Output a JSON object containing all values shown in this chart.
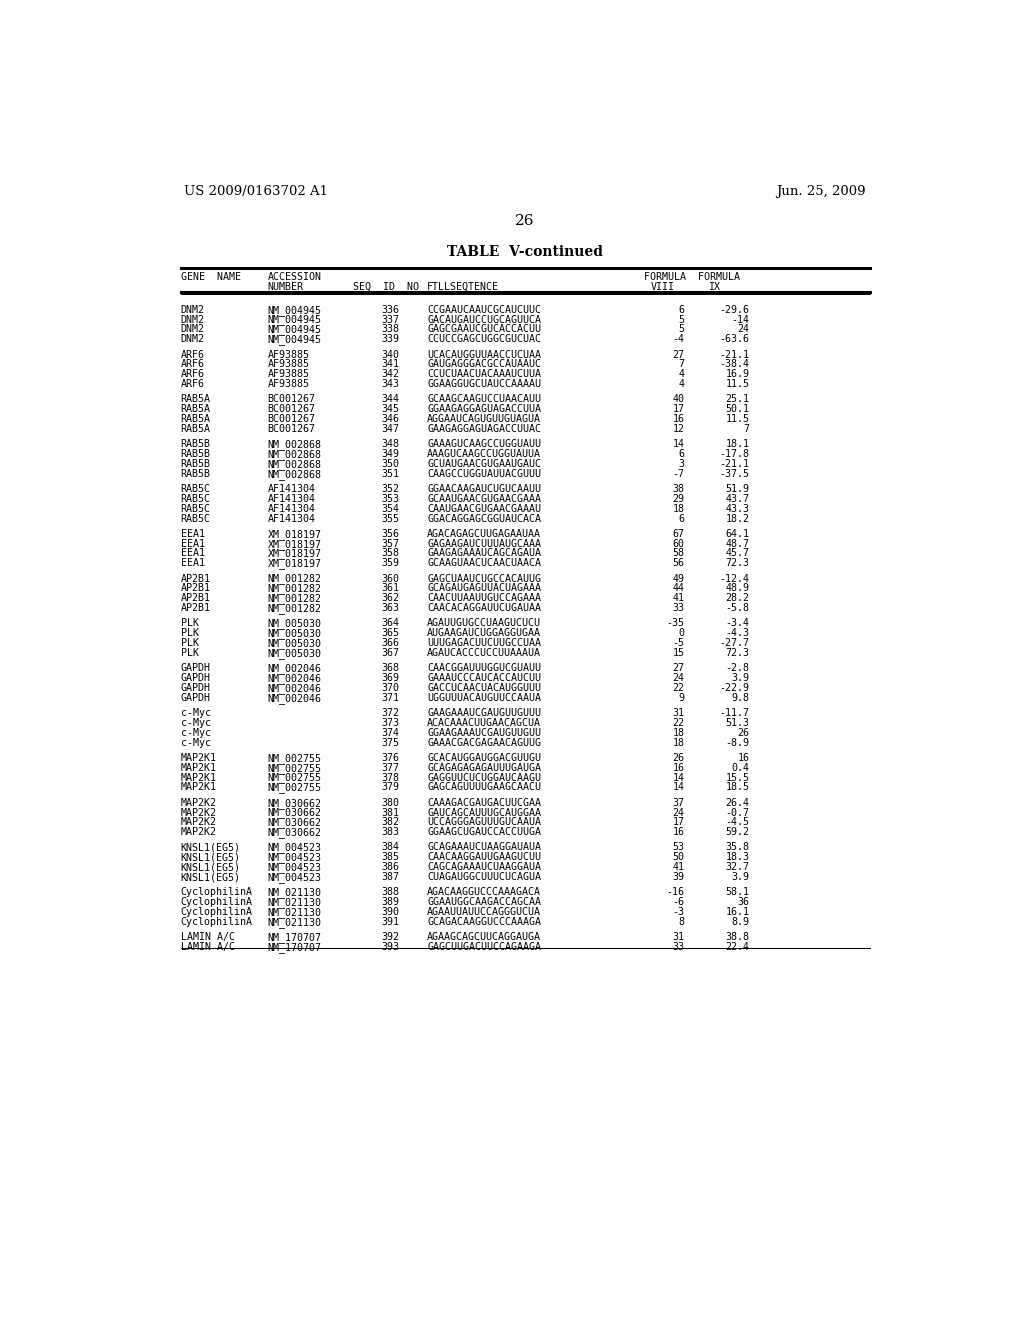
{
  "title_left": "US 2009/0163702 A1",
  "title_right": "Jun. 25, 2009",
  "page_number": "26",
  "table_title": "TABLE  V-continued",
  "rows": [
    [
      "DNM2",
      "NM_004945",
      "336",
      "CCGAAUCAAUCGCAUCUUC",
      "6",
      "-29.6"
    ],
    [
      "DNM2",
      "NM_004945",
      "337",
      "GACAUGAUCCUGCAGUUCA",
      "5",
      "-14"
    ],
    [
      "DNM2",
      "NM_004945",
      "338",
      "GAGCGAAUCGUCACCACUU",
      "5",
      "24"
    ],
    [
      "DNM2",
      "NM_004945",
      "339",
      "CCUCCGAGCUGGCGUCUAC",
      "-4",
      "-63.6"
    ],
    [
      "",
      "",
      "",
      "",
      "",
      ""
    ],
    [
      "ARF6",
      "AF93885",
      "340",
      "UCACAUGGUUAACCUCUAA",
      "27",
      "-21.1"
    ],
    [
      "ARF6",
      "AF93885",
      "341",
      "GAUGAGGGACGCCAUAAUC",
      "7",
      "-38.4"
    ],
    [
      "ARF6",
      "AF93885",
      "342",
      "CCUCUAACUACAAAUCUUA",
      "4",
      "16.9"
    ],
    [
      "ARF6",
      "AF93885",
      "343",
      "GGAAGGUGCUAUCCAAAAU",
      "4",
      "11.5"
    ],
    [
      "",
      "",
      "",
      "",
      "",
      ""
    ],
    [
      "RAB5A",
      "BC001267",
      "344",
      "GCAAGCAAGUCCUAACAUU",
      "40",
      "25.1"
    ],
    [
      "RAB5A",
      "BC001267",
      "345",
      "GGAAGAGGAGUAGACCUUA",
      "17",
      "50.1"
    ],
    [
      "RAB5A",
      "BC001267",
      "346",
      "AGGAAUCAGUGUUGUAGUA",
      "16",
      "11.5"
    ],
    [
      "RAB5A",
      "BC001267",
      "347",
      "GAAGAGGAGUAGACCUUAC",
      "12",
      "7"
    ],
    [
      "",
      "",
      "",
      "",
      "",
      ""
    ],
    [
      "RAB5B",
      "NM_002868",
      "348",
      "GAAAGUCAAGCCUGGUAUU",
      "14",
      "18.1"
    ],
    [
      "RAB5B",
      "NM_002868",
      "349",
      "AAAGUCAAGCCUGGUAUUA",
      "6",
      "-17.8"
    ],
    [
      "RAB5B",
      "NM_002868",
      "350",
      "GCUAUGAACGUGAAUGAUC",
      "3",
      "-21.1"
    ],
    [
      "RAB5B",
      "NM_002868",
      "351",
      "CAAGCCUGGUAUUACGUUU",
      "-7",
      "-37.5"
    ],
    [
      "",
      "",
      "",
      "",
      "",
      ""
    ],
    [
      "RAB5C",
      "AF141304",
      "352",
      "GGAACAAGAUCUGUCAAUU",
      "38",
      "51.9"
    ],
    [
      "RAB5C",
      "AF141304",
      "353",
      "GCAAUGAACGUGAACGAAA",
      "29",
      "43.7"
    ],
    [
      "RAB5C",
      "AF141304",
      "354",
      "CAAUGAACGUGAACGAAAU",
      "18",
      "43.3"
    ],
    [
      "RAB5C",
      "AF141304",
      "355",
      "GGACAGGAGCGGUAUCACA",
      "6",
      "18.2"
    ],
    [
      "",
      "",
      "",
      "",
      "",
      ""
    ],
    [
      "EEA1",
      "XM_018197",
      "356",
      "AGACAGAGCUUGAGAAUAA",
      "67",
      "64.1"
    ],
    [
      "EEA1",
      "XM_018197",
      "357",
      "GAGAAGAUCUUUAUGCAAA",
      "60",
      "48.7"
    ],
    [
      "EEA1",
      "XM_018197",
      "358",
      "GAAGAGAAAUCAGCAGAUA",
      "58",
      "45.7"
    ],
    [
      "EEA1",
      "XM_018197",
      "359",
      "GCAAGUAACUCAACUAACA",
      "56",
      "72.3"
    ],
    [
      "",
      "",
      "",
      "",
      "",
      ""
    ],
    [
      "AP2B1",
      "NM_001282",
      "360",
      "GAGCUAAUCUGCCACAUUG",
      "49",
      "-12.4"
    ],
    [
      "AP2B1",
      "NM_001282",
      "361",
      "GCAGAUGAGUUACUAGAAA",
      "44",
      "48.9"
    ],
    [
      "AP2B1",
      "NM_001282",
      "362",
      "CAACUUAAUUGUCCAGAAA",
      "41",
      "28.2"
    ],
    [
      "AP2B1",
      "NM_001282",
      "363",
      "CAACACAGGAUUCUGAUAA",
      "33",
      "-5.8"
    ],
    [
      "",
      "",
      "",
      "",
      "",
      ""
    ],
    [
      "PLK",
      "NM_005030",
      "364",
      "AGAUUGUGCCUAAGUCUCU",
      "-35",
      "-3.4"
    ],
    [
      "PLK",
      "NM_005030",
      "365",
      "AUGAAGAUCUGGAGGUGAA",
      "0",
      "-4.3"
    ],
    [
      "PLK",
      "NM_005030",
      "366",
      "UUUGAGACUUCUUGCCUAA",
      "-5",
      "-27.7"
    ],
    [
      "PLK",
      "NM_005030",
      "367",
      "AGAUCACCCUCCUUAAAUA",
      "15",
      "72.3"
    ],
    [
      "",
      "",
      "",
      "",
      "",
      ""
    ],
    [
      "GAPDH",
      "NM_002046",
      "368",
      "CAACGGAUUUGGUCGUAUU",
      "27",
      "-2.8"
    ],
    [
      "GAPDH",
      "NM_002046",
      "369",
      "GAAAUCCCAUCACCAUCUU",
      "24",
      "3.9"
    ],
    [
      "GAPDH",
      "NM_002046",
      "370",
      "GACCUCAACUACAUGGUUU",
      "22",
      "-22.9"
    ],
    [
      "GAPDH",
      "NM_002046",
      "371",
      "UGGUUUACAUGUUCCAAUA",
      "9",
      "9.8"
    ],
    [
      "",
      "",
      "",
      "",
      "",
      ""
    ],
    [
      "c-Myc",
      "",
      "372",
      "GAAGAAAUCGAUGUUGUUU",
      "31",
      "-11.7"
    ],
    [
      "c-Myc",
      "",
      "373",
      "ACACAAACUUGAACAGCUA",
      "22",
      "51.3"
    ],
    [
      "c-Myc",
      "",
      "374",
      "GGAAGAAAUCGAUGUUGUU",
      "18",
      "26"
    ],
    [
      "c-Myc",
      "",
      "375",
      "GAAACGACGAGAACAGUUG",
      "18",
      "-8.9"
    ],
    [
      "",
      "",
      "",
      "",
      "",
      ""
    ],
    [
      "MAP2K1",
      "NM_002755",
      "376",
      "GCACAUGGAUGGACGUUGU",
      "26",
      "16"
    ],
    [
      "MAP2K1",
      "NM_002755",
      "377",
      "GCAGAGAGAGAUUUGAUGA",
      "16",
      "0.4"
    ],
    [
      "MAP2K1",
      "NM_002755",
      "378",
      "GAGGUUCUCUGGAUCAAGU",
      "14",
      "15.5"
    ],
    [
      "MAP2K1",
      "NM_002755",
      "379",
      "GAGCAGUUUUGAAGCAACU",
      "14",
      "18.5"
    ],
    [
      "",
      "",
      "",
      "",
      "",
      ""
    ],
    [
      "MAP2K2",
      "NM_030662",
      "380",
      "CAAAGACGAUGACUUCGAA",
      "37",
      "26.4"
    ],
    [
      "MAP2K2",
      "NM_030662",
      "381",
      "GAUCAGCAUUUGCAUGGAA",
      "24",
      "-0.7"
    ],
    [
      "MAP2K2",
      "NM_030662",
      "382",
      "UCCAGGGAGUUUGUCAAUA",
      "17",
      "-4.5"
    ],
    [
      "MAP2K2",
      "NM_030662",
      "383",
      "GGAAGCUGAUCCACCUUGA",
      "16",
      "59.2"
    ],
    [
      "",
      "",
      "",
      "",
      "",
      ""
    ],
    [
      "KNSL1(EG5)",
      "NM_004523",
      "384",
      "GCAGAAAUCUAAGGAUAUA",
      "53",
      "35.8"
    ],
    [
      "KNSL1(EG5)",
      "NM_004523",
      "385",
      "CAACAAGGAUUGAAGUCUU",
      "50",
      "18.3"
    ],
    [
      "KNSL1(EG5)",
      "NM_004523",
      "386",
      "CAGCAGAAAUCUAAGGAUA",
      "41",
      "32.7"
    ],
    [
      "KNSL1(EG5)",
      "NM_004523",
      "387",
      "CUAGAUGGCUUUCUCAGUA",
      "39",
      "3.9"
    ],
    [
      "",
      "",
      "",
      "",
      "",
      ""
    ],
    [
      "CyclophilinA",
      "NM_021130",
      "388",
      "AGACAAGGUCCCAAAGACA",
      "-16",
      "58.1"
    ],
    [
      "CyclophilinA",
      "NM_021130",
      "389",
      "GGAAUGGCAAGACCAGCAA",
      "-6",
      "36"
    ],
    [
      "CyclophilinA",
      "NM_021130",
      "390",
      "AGAAUUAUUCCAGGGUCUA",
      "-3",
      "16.1"
    ],
    [
      "CyclophilinA",
      "NM_021130",
      "391",
      "GCAGACAAGGUCCCAAAGA",
      "8",
      "8.9"
    ],
    [
      "",
      "",
      "",
      "",
      "",
      ""
    ],
    [
      "LAMIN A/C",
      "NM_170707",
      "392",
      "AGAAGCAGCUUCAGGAUGA",
      "31",
      "38.8"
    ],
    [
      "LAMIN A/C",
      "NM_170707",
      "393",
      "GAGCUUGACUUCCAGAAGA",
      "33",
      "22.4"
    ]
  ]
}
